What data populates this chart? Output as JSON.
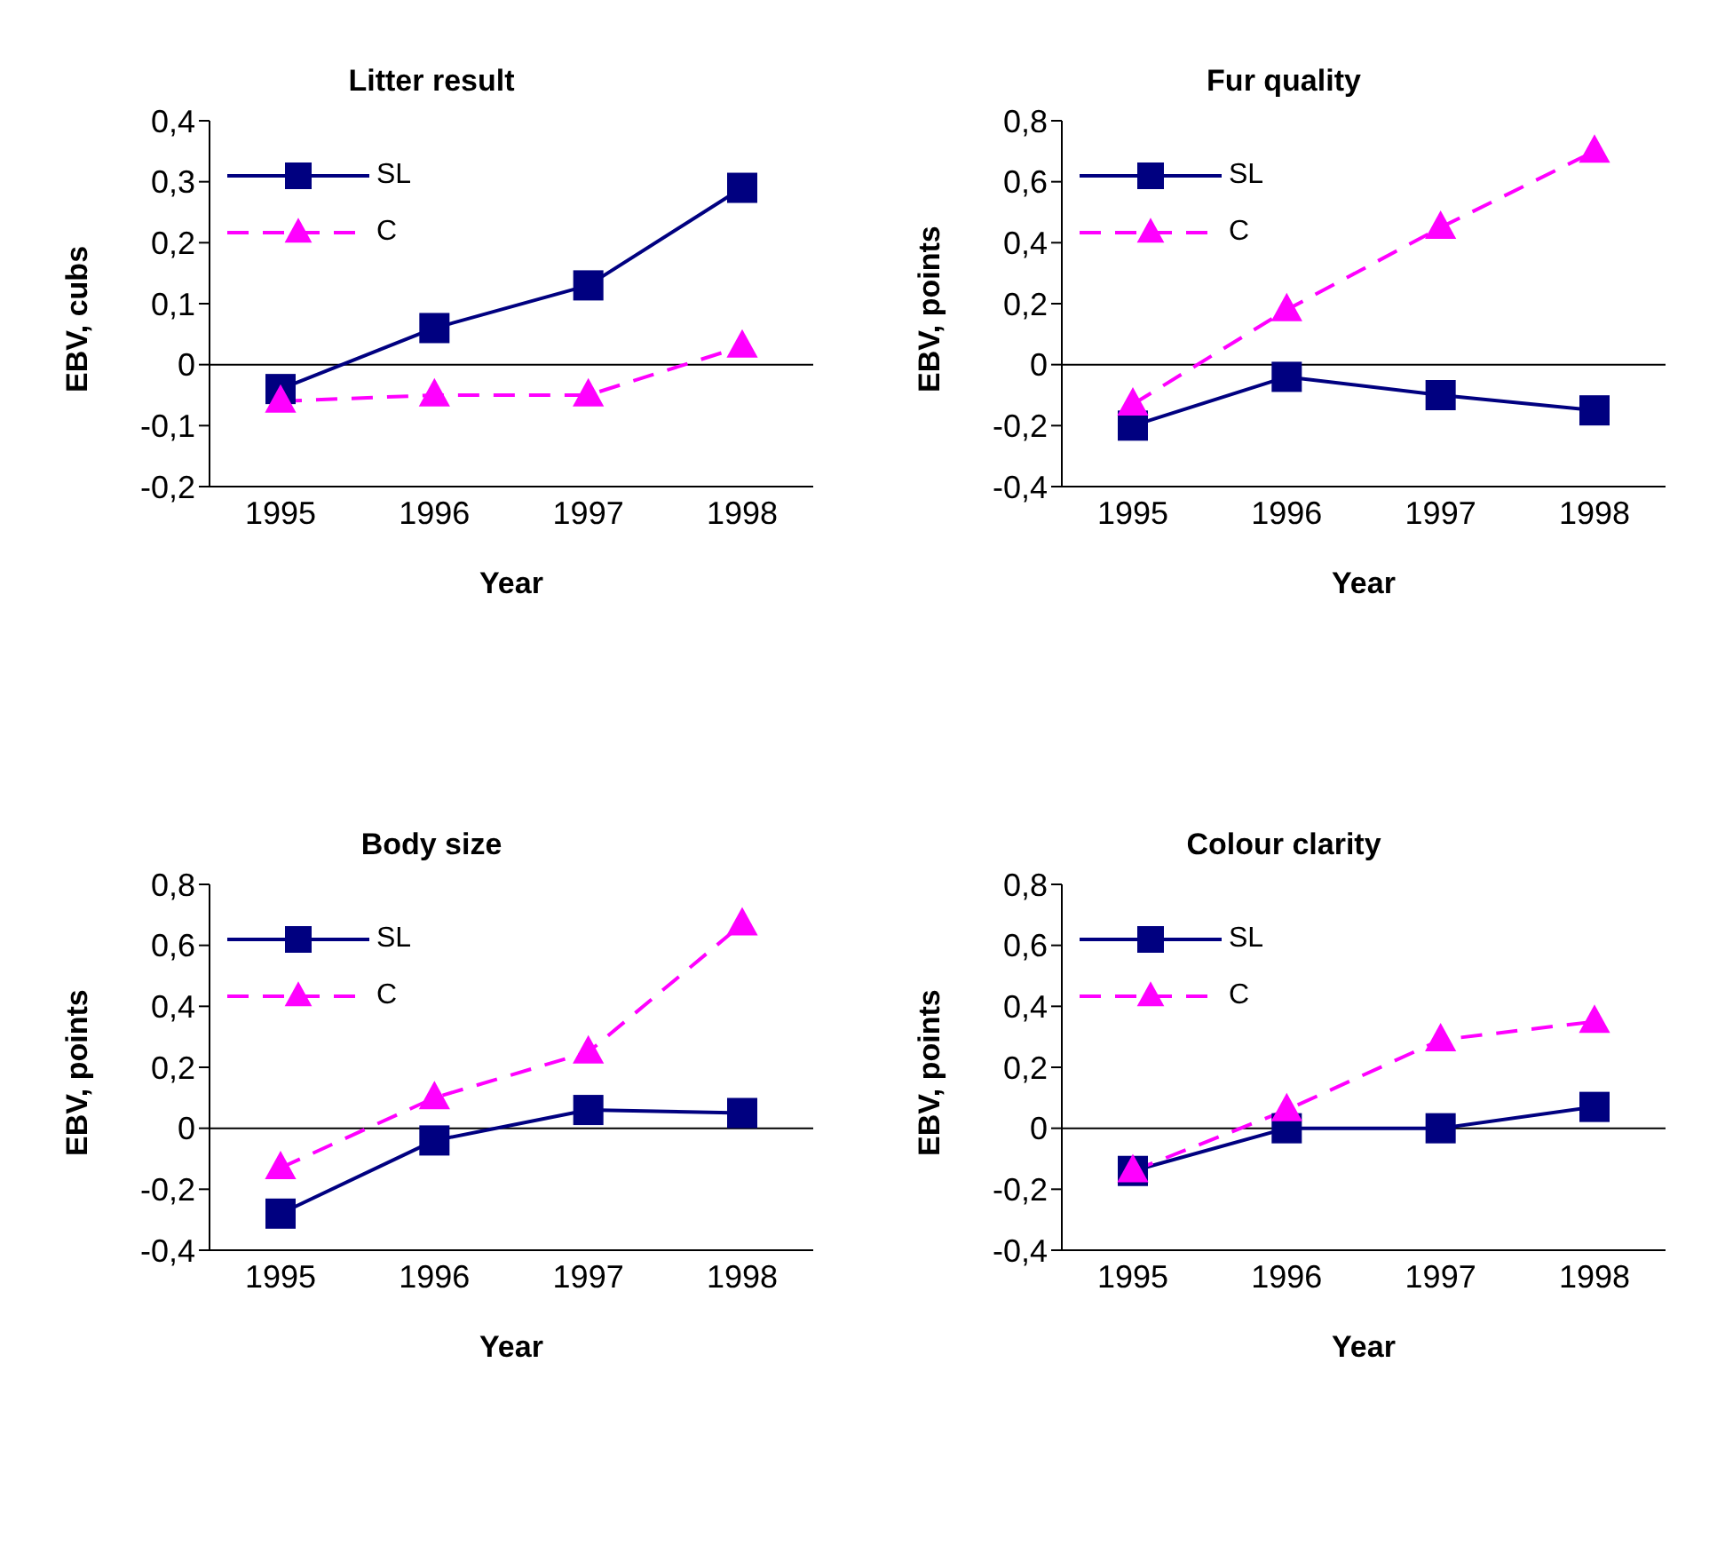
{
  "chart_data": [
    {
      "type": "line",
      "title": "Litter result",
      "xlabel": "Year",
      "ylabel": "EBV, cubs",
      "categories": [
        "1995",
        "1996",
        "1997",
        "1998"
      ],
      "series": [
        {
          "name": "SL",
          "color": "#000080",
          "values": [
            -0.04,
            0.06,
            0.13,
            0.29
          ],
          "marker": "square",
          "line_style": "solid"
        },
        {
          "name": "C",
          "color": "#ff00ff",
          "values": [
            -0.06,
            -0.05,
            -0.05,
            0.03
          ],
          "marker": "triangle",
          "line_style": "dashed"
        }
      ],
      "ylim": [
        -0.2,
        0.4
      ],
      "yticks": [
        {
          "value": -0.2,
          "label": "-0,2"
        },
        {
          "value": -0.1,
          "label": "-0,1"
        },
        {
          "value": 0,
          "label": "0"
        },
        {
          "value": 0.1,
          "label": "0,1"
        },
        {
          "value": 0.2,
          "label": "0,2"
        },
        {
          "value": 0.3,
          "label": "0,3"
        },
        {
          "value": 0.4,
          "label": "0,4"
        }
      ],
      "ref_lines": [
        {
          "axis": "y",
          "value": 0,
          "color": "#000000"
        }
      ],
      "legend": "top left",
      "grid": false
    },
    {
      "type": "line",
      "title": "Fur quality",
      "xlabel": "Year",
      "ylabel": "EBV, points",
      "categories": [
        "1995",
        "1996",
        "1997",
        "1998"
      ],
      "series": [
        {
          "name": "SL",
          "color": "#000080",
          "values": [
            -0.2,
            -0.04,
            -0.1,
            -0.15
          ],
          "marker": "square",
          "line_style": "solid"
        },
        {
          "name": "C",
          "color": "#ff00ff",
          "values": [
            -0.13,
            0.18,
            0.45,
            0.7
          ],
          "marker": "triangle",
          "line_style": "dashed"
        }
      ],
      "ylim": [
        -0.4,
        0.8
      ],
      "yticks": [
        {
          "value": -0.4,
          "label": "-0,4"
        },
        {
          "value": -0.2,
          "label": "-0,2"
        },
        {
          "value": 0,
          "label": "0"
        },
        {
          "value": 0.2,
          "label": "0,2"
        },
        {
          "value": 0.4,
          "label": "0,4"
        },
        {
          "value": 0.6,
          "label": "0,6"
        },
        {
          "value": 0.8,
          "label": "0,8"
        }
      ],
      "ref_lines": [
        {
          "axis": "y",
          "value": 0,
          "color": "#000000"
        }
      ],
      "legend": "top left",
      "grid": false
    },
    {
      "type": "line",
      "title": "Body size",
      "xlabel": "Year",
      "ylabel": "EBV, points",
      "categories": [
        "1995",
        "1996",
        "1997",
        "1998"
      ],
      "series": [
        {
          "name": "SL",
          "color": "#000080",
          "values": [
            -0.28,
            -0.04,
            0.06,
            0.05
          ],
          "marker": "square",
          "line_style": "solid"
        },
        {
          "name": "C",
          "color": "#ff00ff",
          "values": [
            -0.13,
            0.1,
            0.25,
            0.67
          ],
          "marker": "triangle",
          "line_style": "dashed"
        }
      ],
      "ylim": [
        -0.4,
        0.8
      ],
      "yticks": [
        {
          "value": -0.4,
          "label": "-0,4"
        },
        {
          "value": -0.2,
          "label": "-0,2"
        },
        {
          "value": 0,
          "label": "0"
        },
        {
          "value": 0.2,
          "label": "0,2"
        },
        {
          "value": 0.4,
          "label": "0,4"
        },
        {
          "value": 0.6,
          "label": "0,6"
        },
        {
          "value": 0.8,
          "label": "0,8"
        }
      ],
      "ref_lines": [
        {
          "axis": "y",
          "value": 0,
          "color": "#000000"
        }
      ],
      "legend": "top left",
      "grid": false
    },
    {
      "type": "line",
      "title": "Colour clarity",
      "xlabel": "Year",
      "ylabel": "EBV, points",
      "categories": [
        "1995",
        "1996",
        "1997",
        "1998"
      ],
      "series": [
        {
          "name": "SL",
          "color": "#000080",
          "values": [
            -0.14,
            0,
            0,
            0.07
          ],
          "marker": "square",
          "line_style": "solid"
        },
        {
          "name": "C",
          "color": "#ff00ff",
          "values": [
            -0.14,
            0.06,
            0.29,
            0.35
          ],
          "marker": "triangle",
          "line_style": "dashed"
        }
      ],
      "ylim": [
        -0.4,
        0.8
      ],
      "yticks": [
        {
          "value": -0.4,
          "label": "-0,4"
        },
        {
          "value": -0.2,
          "label": "-0,2"
        },
        {
          "value": 0,
          "label": "0"
        },
        {
          "value": 0.2,
          "label": "0,2"
        },
        {
          "value": 0.4,
          "label": "0,4"
        },
        {
          "value": 0.6,
          "label": "0,6"
        },
        {
          "value": 0.8,
          "label": "0,8"
        }
      ],
      "ref_lines": [
        {
          "axis": "y",
          "value": 0,
          "color": "#000000"
        }
      ],
      "legend": "top left",
      "grid": false
    }
  ]
}
